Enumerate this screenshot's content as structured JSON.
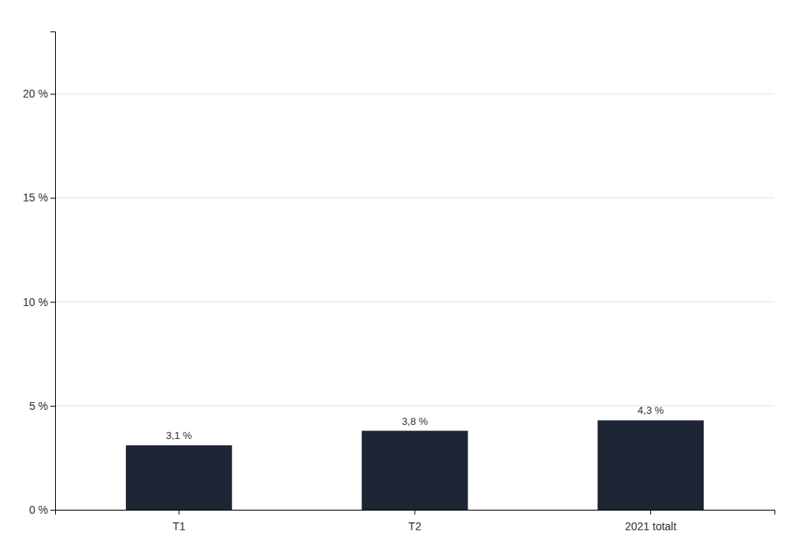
{
  "chart_data": {
    "type": "bar",
    "categories": [
      "T1",
      "T2",
      "2021 totalt"
    ],
    "values": [
      3.1,
      3.8,
      4.3
    ],
    "value_labels": [
      "3,1 %",
      "3,8 %",
      "4,3 %"
    ],
    "data_labels": true,
    "color": "#1e2535",
    "ylim": [
      0,
      23
    ],
    "yticks": [
      {
        "value": 0,
        "label": "0 %"
      },
      {
        "value": 5,
        "label": "5 %"
      },
      {
        "value": 10,
        "label": "10 %"
      },
      {
        "value": 15,
        "label": "15 %"
      },
      {
        "value": 20,
        "label": "20 %"
      }
    ],
    "grid": true
  }
}
